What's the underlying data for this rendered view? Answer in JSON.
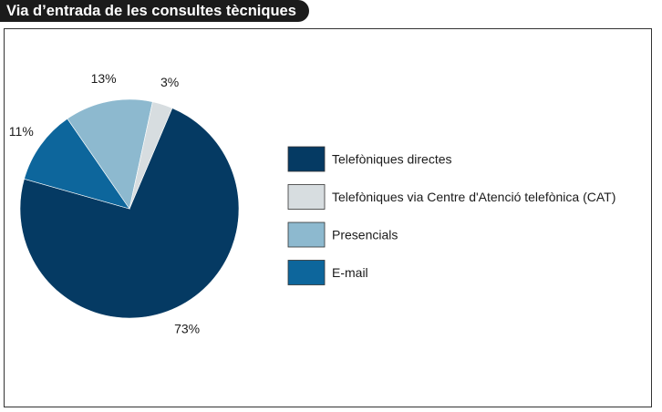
{
  "title": "Via d’entrada de les consultes tècniques",
  "chart_data": {
    "type": "pie",
    "title": "Via d’entrada de les consultes tècniques",
    "start_angle_deg": 23,
    "slices": [
      {
        "name": "Telefòniques directes",
        "value": 73,
        "label": "73%",
        "color": "#053a63"
      },
      {
        "name": "E-mail",
        "value": 11,
        "label": "11%",
        "color": "#0d669c"
      },
      {
        "name": "Presencials",
        "value": 13,
        "label": "13%",
        "color": "#8db9cf"
      },
      {
        "name": "Telefòniques via Centre d'Atenció telefònica (CAT)",
        "value": 3,
        "label": "3%",
        "color": "#d7dde0"
      }
    ],
    "legend": {
      "placement": "right",
      "order": [
        0,
        3,
        2,
        1
      ]
    }
  }
}
